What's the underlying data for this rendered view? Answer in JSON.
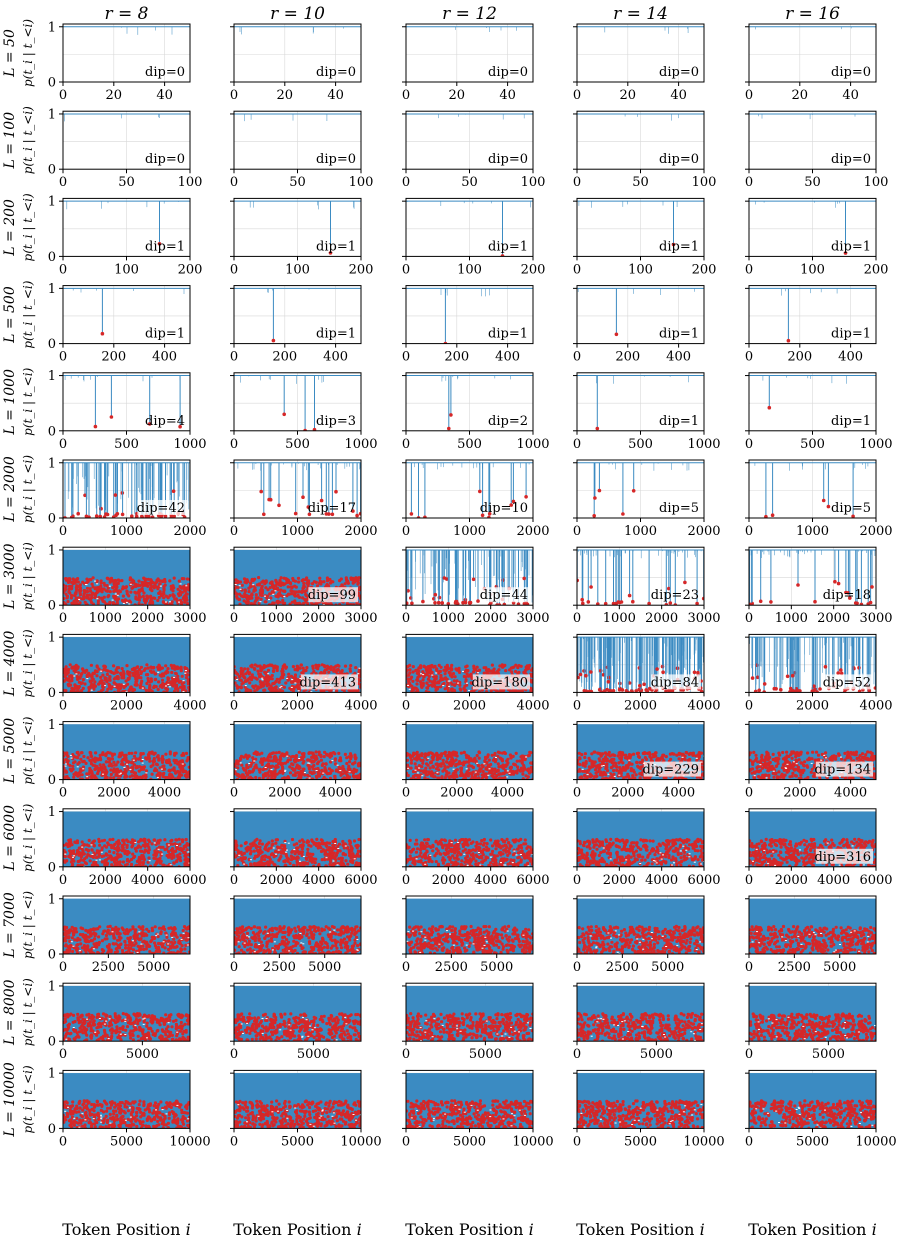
{
  "figure": {
    "xlabel_prefix": "Token Position",
    "xlabel_var": "i",
    "ylabel": "p(t_i | t_<i)",
    "annotation_prefix": "dip=",
    "colors": {
      "signal": "#3b8bc2",
      "dip_marker": "#d62728",
      "grid": "#d8d8d8",
      "axis": "#000000"
    }
  },
  "chart_data": {
    "type": "line",
    "description_of_marks": "per-token probability trace (blue) with detected dips marked as red dots",
    "columns": [
      {
        "r": 8,
        "label": "r = 8"
      },
      {
        "r": 10,
        "label": "r = 10"
      },
      {
        "r": 12,
        "label": "r = 12"
      },
      {
        "r": 14,
        "label": "r = 14"
      },
      {
        "r": 16,
        "label": "r = 16"
      }
    ],
    "rows": [
      {
        "L": 50,
        "label": "L = 50",
        "xlim": [
          0,
          50
        ],
        "xticks": [
          0,
          20,
          40
        ],
        "dips": [
          0,
          0,
          0,
          0,
          0
        ]
      },
      {
        "L": 100,
        "label": "L = 100",
        "xlim": [
          0,
          100
        ],
        "xticks": [
          0,
          50,
          100
        ],
        "dips": [
          0,
          0,
          0,
          0,
          0
        ]
      },
      {
        "L": 200,
        "label": "L = 200",
        "xlim": [
          0,
          200
        ],
        "xticks": [
          0,
          100,
          200
        ],
        "dips": [
          1,
          1,
          1,
          1,
          1
        ]
      },
      {
        "L": 500,
        "label": "L = 500",
        "xlim": [
          0,
          500
        ],
        "xticks": [
          0,
          200,
          400
        ],
        "dips": [
          1,
          1,
          1,
          1,
          1
        ]
      },
      {
        "L": 1000,
        "label": "L = 1000",
        "xlim": [
          0,
          1000
        ],
        "xticks": [
          0,
          500,
          1000
        ],
        "dips": [
          4,
          3,
          2,
          1,
          1
        ]
      },
      {
        "L": 2000,
        "label": "L = 2000",
        "xlim": [
          0,
          2000
        ],
        "xticks": [
          0,
          1000,
          2000
        ],
        "dips": [
          42,
          17,
          10,
          5,
          5
        ]
      },
      {
        "L": 3000,
        "label": "L = 3000",
        "xlim": [
          0,
          3000
        ],
        "xticks": [
          0,
          1000,
          2000,
          3000
        ],
        "dips": [
          null,
          99,
          44,
          23,
          18
        ]
      },
      {
        "L": 4000,
        "label": "L = 4000",
        "xlim": [
          0,
          4000
        ],
        "xticks": [
          0,
          2000,
          4000
        ],
        "dips": [
          null,
          413,
          180,
          84,
          52
        ]
      },
      {
        "L": 5000,
        "label": "L = 5000",
        "xlim": [
          0,
          5000
        ],
        "xticks": [
          0,
          2000,
          4000
        ],
        "dips": [
          null,
          null,
          null,
          229,
          134
        ]
      },
      {
        "L": 6000,
        "label": "L = 6000",
        "xlim": [
          0,
          6000
        ],
        "xticks": [
          0,
          2000,
          4000,
          6000
        ],
        "dips": [
          null,
          null,
          null,
          null,
          316
        ]
      },
      {
        "L": 7000,
        "label": "L = 7000",
        "xlim": [
          0,
          7000
        ],
        "xticks": [
          0,
          2500,
          5000
        ],
        "dips": [
          null,
          null,
          null,
          null,
          null
        ]
      },
      {
        "L": 8000,
        "label": "L = 8000",
        "xlim": [
          0,
          8000
        ],
        "xticks": [
          0,
          5000
        ],
        "dips": [
          null,
          null,
          null,
          null,
          null
        ]
      },
      {
        "L": 10000,
        "label": "L = 10000",
        "xlim": [
          0,
          10000
        ],
        "xticks": [
          0,
          5000,
          10000
        ],
        "dips": [
          null,
          null,
          null,
          null,
          null
        ]
      }
    ],
    "ylim": [
      0,
      1.05
    ],
    "yticks": [
      0,
      1
    ],
    "grid": true
  }
}
